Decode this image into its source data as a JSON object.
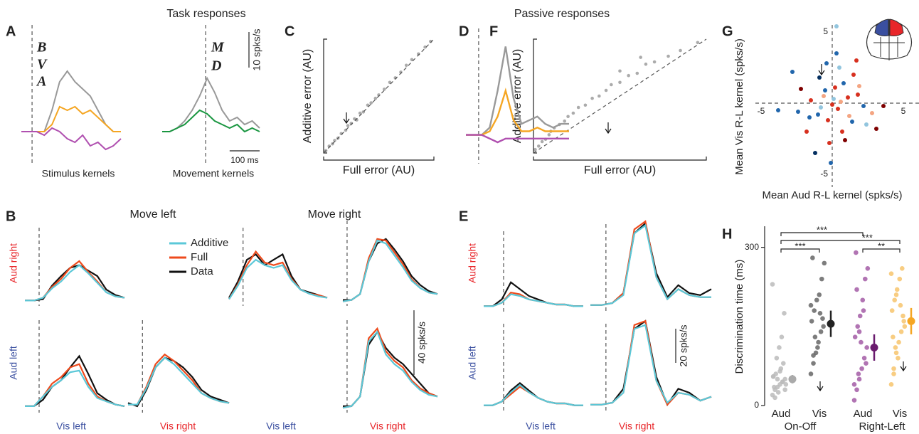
{
  "headings": {
    "task": "Task responses",
    "passive": "Passive responses"
  },
  "panel_a": {
    "letter": "A",
    "ylim": [
      -5,
      25
    ],
    "stimulus": {
      "caption": "Stimulus kernels",
      "xlim": [
        -35,
        290
      ],
      "series": [
        {
          "name": "B",
          "color": "#999999",
          "values": [
            0,
            0,
            0,
            0,
            6,
            14,
            17,
            14,
            12,
            10,
            6,
            2,
            0,
            0
          ]
        },
        {
          "name": "V",
          "color": "#f5a623",
          "values": [
            0,
            0,
            0,
            0,
            2,
            7,
            6,
            7,
            5,
            6,
            4,
            2,
            0,
            0
          ]
        },
        {
          "name": "A",
          "color": "#b050b0",
          "values": [
            0,
            0,
            0,
            -1,
            1,
            0,
            -2,
            -3,
            -1,
            -4,
            -3,
            -5,
            -4,
            -2
          ]
        }
      ]
    },
    "movement": {
      "caption": "Movement kernels",
      "xlim": [
        -145,
        180
      ],
      "series": [
        {
          "name": "M",
          "color": "#999999",
          "values": [
            0,
            0,
            1,
            3,
            6,
            10,
            15,
            11,
            6,
            3,
            4,
            2,
            3,
            1
          ]
        },
        {
          "name": "D",
          "color": "#1a9641",
          "values": [
            0,
            0,
            1,
            2,
            4,
            6,
            5,
            3,
            2,
            1,
            2,
            0,
            1,
            0
          ]
        }
      ]
    },
    "scale_y": {
      "value": 10,
      "label": "10 spks/s"
    },
    "scale_x": {
      "value": 100,
      "label": "100 ms"
    }
  },
  "panel_b": {
    "letter": "B",
    "columns": [
      "Move left",
      "Move right"
    ],
    "rows": [
      "Aud right",
      "Aud left"
    ],
    "series_names": [
      "Additive",
      "Full",
      "Data"
    ],
    "colors": [
      "#5bc8d8",
      "#ee4a1c",
      "#111111"
    ],
    "ylim": [
      0,
      55
    ],
    "scale": {
      "value": 40,
      "label": "40 spks/s"
    },
    "x_labels": [
      "Vis left",
      "Vis right",
      "Vis left",
      "Vis right"
    ],
    "subpanels": [
      {
        "xlim": [
          -50,
          300
        ],
        "values": [
          [
            4,
            4,
            6,
            13,
            18,
            25,
            30,
            24,
            17,
            10,
            7,
            6
          ],
          [
            4,
            4,
            6,
            14,
            20,
            28,
            33,
            25,
            18,
            10,
            7,
            6
          ],
          [
            4,
            4,
            5,
            15,
            22,
            28,
            30,
            26,
            22,
            12,
            8,
            6
          ]
        ]
      },
      {
        "xlim": [
          -50,
          300
        ],
        "values": [
          [
            5,
            15,
            28,
            34,
            30,
            28,
            30,
            19,
            12,
            9,
            7,
            6
          ],
          [
            5,
            16,
            30,
            40,
            32,
            30,
            32,
            20,
            12,
            9,
            8,
            6
          ],
          [
            6,
            18,
            34,
            38,
            30,
            34,
            38,
            22,
            12,
            10,
            8,
            6
          ]
        ]
      },
      {
        "xlim": [
          -15,
          320
        ],
        "values": [
          [
            3,
            4,
            8,
            30,
            44,
            42,
            34,
            26,
            17,
            12,
            9,
            8
          ],
          [
            3,
            4,
            8,
            32,
            45,
            44,
            36,
            28,
            18,
            12,
            9,
            8
          ],
          [
            4,
            4,
            8,
            30,
            42,
            45,
            38,
            30,
            20,
            14,
            10,
            8
          ]
        ]
      },
      {
        "xlim": [
          -50,
          300
        ],
        "values": [
          [
            4,
            4,
            10,
            16,
            20,
            25,
            26,
            16,
            9,
            7,
            5,
            4
          ],
          [
            4,
            4,
            10,
            18,
            22,
            28,
            30,
            18,
            10,
            7,
            5,
            4
          ],
          [
            4,
            4,
            8,
            16,
            20,
            28,
            35,
            24,
            12,
            8,
            5,
            4
          ]
        ]
      },
      {
        "xlim": [
          -50,
          300
        ],
        "values": [
          [
            5,
            5,
            15,
            28,
            34,
            30,
            24,
            18,
            12,
            9,
            7,
            6
          ],
          [
            5,
            5,
            16,
            30,
            36,
            32,
            26,
            20,
            12,
            9,
            7,
            6
          ],
          [
            6,
            4,
            14,
            28,
            34,
            32,
            28,
            22,
            14,
            10,
            8,
            6
          ]
        ]
      },
      {
        "xlim": [
          -15,
          320
        ],
        "values": [
          [
            3,
            4,
            10,
            44,
            50,
            36,
            30,
            26,
            19,
            14,
            11,
            10
          ],
          [
            3,
            4,
            10,
            46,
            52,
            38,
            32,
            28,
            20,
            15,
            12,
            10
          ],
          [
            4,
            4,
            10,
            42,
            50,
            40,
            34,
            30,
            24,
            18,
            12,
            10
          ]
        ]
      }
    ]
  },
  "panel_c": {
    "letter": "C",
    "xlabel": "Full error (AU)",
    "ylabel": "Additive error (AU)",
    "xlim": [
      0,
      1
    ],
    "ylim": [
      0,
      1
    ],
    "x": [
      0.02,
      0.05,
      0.08,
      0.1,
      0.13,
      0.16,
      0.2,
      0.22,
      0.25,
      0.28,
      0.3,
      0.33,
      0.36,
      0.4,
      0.43,
      0.47,
      0.5,
      0.55,
      0.6,
      0.65,
      0.7,
      0.75,
      0.8,
      0.86,
      0.92,
      0.97
    ],
    "y": [
      0.02,
      0.06,
      0.08,
      0.11,
      0.13,
      0.17,
      0.2,
      0.24,
      0.26,
      0.3,
      0.29,
      0.35,
      0.36,
      0.42,
      0.44,
      0.48,
      0.51,
      0.56,
      0.62,
      0.66,
      0.71,
      0.77,
      0.82,
      0.87,
      0.93,
      0.98
    ]
  },
  "panel_d": {
    "letter": "D",
    "xlim": [
      -42,
      298
    ],
    "ylim": [
      -2,
      26
    ],
    "series": [
      {
        "color": "#999999",
        "values": [
          0,
          0,
          0,
          2,
          12,
          24,
          10,
          3,
          4,
          5,
          3,
          2,
          3,
          3
        ]
      },
      {
        "color": "#f5a623",
        "values": [
          0,
          0,
          0,
          1,
          5,
          12,
          4,
          1,
          1,
          2,
          1,
          1,
          1,
          1
        ]
      },
      {
        "color": "#b050b0",
        "values": [
          0,
          0,
          0,
          -1,
          -2,
          -1,
          -1,
          -1,
          -1,
          -1,
          -1,
          -1,
          -1,
          -1
        ]
      }
    ]
  },
  "panel_e": {
    "letter": "E",
    "rows": [
      "Aud right",
      "Aud left"
    ],
    "colors": [
      "#5bc8d8",
      "#ee4a1c",
      "#111111"
    ],
    "ylim": [
      0,
      50
    ],
    "scale": {
      "value": 20,
      "label": "20 spks/s"
    },
    "x_labels": [
      "Vis left",
      "Vis right"
    ],
    "subpanels": [
      {
        "xlim": [
          -70,
          280
        ],
        "values": [
          [
            4,
            4,
            6,
            11,
            10,
            8,
            7,
            6,
            5,
            5,
            4,
            4
          ],
          [
            4,
            4,
            6,
            12,
            11,
            8,
            7,
            6,
            5,
            5,
            4,
            4
          ],
          [
            4,
            4,
            8,
            18,
            14,
            10,
            8,
            6,
            5,
            5,
            4,
            4
          ]
        ]
      },
      {
        "xlim": [
          -45,
          305
        ],
        "values": [
          [
            4,
            4,
            5,
            9,
            40,
            44,
            18,
            7,
            12,
            9,
            8,
            8
          ],
          [
            4,
            4,
            5,
            10,
            42,
            46,
            18,
            7,
            12,
            9,
            8,
            8
          ],
          [
            4,
            4,
            5,
            10,
            40,
            45,
            20,
            8,
            14,
            10,
            9,
            12
          ]
        ]
      },
      {
        "xlim": [
          -70,
          280
        ],
        "values": [
          [
            4,
            4,
            6,
            11,
            15,
            11,
            8,
            6,
            5,
            5,
            4,
            4
          ],
          [
            4,
            4,
            6,
            10,
            14,
            11,
            8,
            6,
            5,
            5,
            4,
            4
          ],
          [
            4,
            4,
            6,
            12,
            16,
            12,
            8,
            6,
            5,
            5,
            4,
            4
          ]
        ]
      },
      {
        "xlim": [
          -45,
          305
        ],
        "values": [
          [
            4,
            4,
            5,
            10,
            42,
            44,
            16,
            5,
            10,
            9,
            6,
            8
          ],
          [
            4,
            4,
            5,
            10,
            44,
            46,
            16,
            4,
            10,
            9,
            6,
            8
          ],
          [
            4,
            4,
            5,
            12,
            42,
            46,
            18,
            4,
            12,
            10,
            6,
            8
          ]
        ]
      }
    ]
  },
  "panel_f": {
    "letter": "F",
    "xlabel": "Full error (AU)",
    "ylabel": "Additive error (AU)",
    "xlim": [
      0,
      1
    ],
    "ylim": [
      0,
      1
    ],
    "x": [
      0.01,
      0.03,
      0.05,
      0.07,
      0.09,
      0.1,
      0.12,
      0.15,
      0.18,
      0.2,
      0.23,
      0.26,
      0.3,
      0.34,
      0.38,
      0.42,
      0.45,
      0.5,
      0.55,
      0.6,
      0.65,
      0.7,
      0.78,
      0.85,
      0.95,
      0.5,
      0.62
    ],
    "y": [
      0.03,
      0.06,
      0.1,
      0.12,
      0.16,
      0.19,
      0.22,
      0.25,
      0.28,
      0.32,
      0.35,
      0.4,
      0.42,
      0.48,
      0.5,
      0.55,
      0.6,
      0.62,
      0.68,
      0.7,
      0.78,
      0.8,
      0.85,
      0.9,
      0.97,
      0.72,
      0.84
    ]
  },
  "panel_g": {
    "letter": "G",
    "xlabel": "Mean Aud R-L kernel (spks/s)",
    "ylabel": "Mean Vis R-L kernel (spks/s)",
    "xlim": [
      -5.4,
      6.1
    ],
    "ylim": [
      -5.9,
      5.5
    ],
    "xticks": [
      -5,
      5
    ],
    "yticks": [
      -5,
      5
    ],
    "x": [
      -3.8,
      -2.2,
      -1.5,
      -1.0,
      -0.6,
      -0.3,
      0.1,
      0.4,
      0.8,
      1.2,
      1.8,
      2.4,
      3.1,
      -2.8,
      -1.8,
      -0.9,
      0.5,
      1.5,
      2.2,
      -0.2,
      0.3,
      -1.2,
      0.9,
      1.9,
      -0.5,
      0.0,
      0.6,
      -1.6,
      1.1,
      2.8,
      -0.8,
      0.2,
      1.4,
      -2.4,
      0.7,
      -0.1,
      3.6,
      1.7,
      -0.4,
      0.3
    ],
    "y": [
      -0.5,
      1.0,
      0.2,
      -0.8,
      0.5,
      -1.2,
      0.3,
      -0.4,
      1.4,
      -0.9,
      0.6,
      -1.5,
      -1.8,
      2.2,
      -2.0,
      1.8,
      2.5,
      2.0,
      -0.2,
      -2.8,
      3.5,
      -3.5,
      -2.6,
      1.2,
      0.9,
      -0.1,
      0.1,
      -1.0,
      0.4,
      -0.7,
      -0.3,
      1.1,
      -1.3,
      -0.6,
      -2.0,
      -4.2,
      -0.2,
      3.0,
      2.8,
      5.4
    ],
    "colors": [
      "#2166ac",
      "#7f0000",
      "#d7301f",
      "#2166ac",
      "#f4a582",
      "#d7301f",
      "#92c5de",
      "#d7301f",
      "#2166ac",
      "#f4a582",
      "#d7301f",
      "#92c5de",
      "#7f0000",
      "#2166ac",
      "#d7301f",
      "#053061",
      "#92c5de",
      "#d7301f",
      "#2166ac",
      "#d7301f",
      "#2166ac",
      "#053061",
      "#7f0000",
      "#f4a582",
      "#2166ac",
      "#d7301f",
      "#f4a582",
      "#2166ac",
      "#d7301f",
      "#f4a582",
      "#92c5de",
      "#d7301f",
      "#2166ac",
      "#2166ac",
      "#d7301f",
      "#2166ac",
      "#7f0000",
      "#d7301f",
      "#2166ac",
      "#92c5de"
    ]
  },
  "panel_h": {
    "letter": "H",
    "ylabel": "Discrimination time (ms)",
    "ylim": [
      0,
      340
    ],
    "yticks": [
      0,
      300
    ],
    "categories": [
      "Aud",
      "Vis",
      "Aud",
      "Vis"
    ],
    "groups": [
      "On-Off",
      "Right-Left"
    ],
    "points": [
      [
        20,
        30,
        35,
        40,
        45,
        50,
        55,
        60,
        25,
        70,
        80,
        40,
        35,
        90,
        110,
        130,
        175,
        230,
        15,
        50,
        65,
        45,
        30,
        55
      ],
      [
        60,
        80,
        100,
        120,
        140,
        150,
        160,
        180,
        200,
        210,
        240,
        270,
        280,
        130,
        110,
        175,
        165,
        190,
        95
      ],
      [
        10,
        30,
        50,
        70,
        90,
        110,
        130,
        150,
        170,
        200,
        240,
        260,
        290,
        60,
        120,
        180,
        80,
        40,
        220,
        140
      ],
      [
        40,
        70,
        100,
        120,
        140,
        160,
        180,
        200,
        220,
        240,
        260,
        150,
        130,
        110,
        90,
        190,
        170,
        250,
        60,
        210
      ]
    ],
    "point_colors": [
      "#bbbbbb",
      "#666666",
      "#a35ca6",
      "#f7c46c"
    ],
    "means": [
      50,
      155,
      110,
      160
    ],
    "errors": [
      8,
      25,
      25,
      25
    ],
    "mean_colors": [
      "#aaaaaa",
      "#222222",
      "#6a1b6e",
      "#f5a623"
    ],
    "brackets": [
      {
        "pair": [
          0,
          2
        ],
        "label": "***"
      },
      {
        "pair": [
          0,
          3
        ],
        "label": "***"
      },
      {
        "pair": [
          0,
          1
        ],
        "label": "***"
      },
      {
        "pair": [
          2,
          3
        ],
        "label": "**"
      }
    ]
  }
}
